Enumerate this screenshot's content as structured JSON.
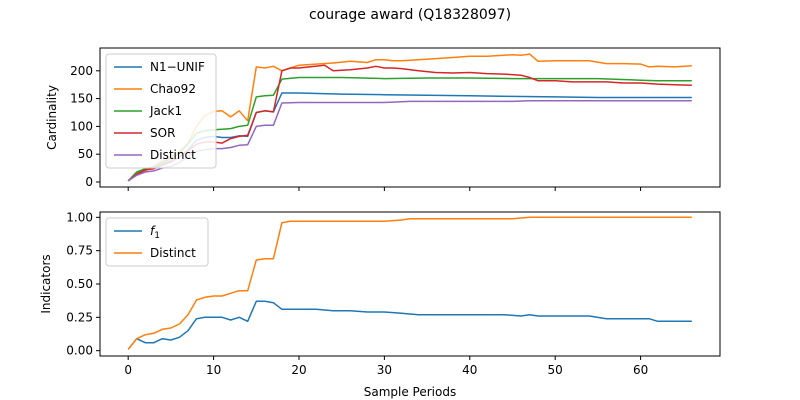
{
  "title": "courage award (Q18328097)",
  "chart_data": [
    {
      "type": "line",
      "ylabel": "Cardinality",
      "xlabel": "",
      "xlim": [
        -3.3,
        69.3
      ],
      "ylim": [
        -9,
        241
      ],
      "xticks": [
        0,
        10,
        20,
        30,
        40,
        50,
        60
      ],
      "yticks": [
        0,
        50,
        100,
        150,
        200
      ],
      "ytick_labels": [
        "0",
        "50",
        "100",
        "150",
        "200"
      ],
      "show_xtick_labels": false,
      "legend_position": "upper-left",
      "series": [
        {
          "name": "N1−UNIF",
          "color": "#1f77b4",
          "x": [
            0,
            1,
            2,
            3,
            4,
            5,
            6,
            7,
            8,
            9,
            10,
            11,
            12,
            13,
            14,
            15,
            16,
            17,
            18,
            20,
            25,
            30,
            35,
            40,
            45,
            50,
            55,
            60,
            66
          ],
          "y": [
            2,
            15,
            22,
            25,
            33,
            38,
            45,
            58,
            75,
            80,
            82,
            80,
            80,
            83,
            82,
            125,
            128,
            126,
            160,
            160,
            158,
            157,
            156,
            155,
            154,
            153,
            152,
            152,
            152
          ]
        },
        {
          "name": "Chao92",
          "color": "#ff7f0e",
          "x": [
            0,
            1,
            2,
            3,
            4,
            5,
            6,
            7,
            8,
            9,
            10,
            11,
            12,
            13,
            14,
            15,
            16,
            17,
            18,
            19,
            20,
            22,
            24,
            26,
            28,
            29,
            30,
            31,
            32,
            34,
            36,
            38,
            40,
            42,
            44,
            45,
            46,
            47,
            48,
            50,
            52,
            54,
            56,
            58,
            60,
            61,
            62,
            64,
            66
          ],
          "y": [
            2,
            15,
            20,
            28,
            38,
            45,
            55,
            70,
            100,
            120,
            127,
            128,
            117,
            128,
            110,
            207,
            205,
            208,
            200,
            205,
            210,
            212,
            214,
            217,
            215,
            220,
            220,
            218,
            218,
            220,
            222,
            224,
            226,
            226,
            228,
            229,
            228,
            230,
            217,
            218,
            218,
            218,
            213,
            213,
            212,
            207,
            208,
            207,
            209
          ]
        },
        {
          "name": "Jack1",
          "color": "#2ca02c",
          "x": [
            0,
            1,
            2,
            3,
            4,
            5,
            6,
            7,
            8,
            9,
            10,
            11,
            12,
            13,
            14,
            15,
            16,
            17,
            18,
            20,
            25,
            30,
            35,
            40,
            45,
            50,
            55,
            60,
            62,
            66
          ],
          "y": [
            2,
            18,
            24,
            28,
            35,
            42,
            52,
            68,
            88,
            92,
            94,
            95,
            96,
            100,
            102,
            153,
            155,
            156,
            185,
            188,
            188,
            186,
            187,
            187,
            186,
            186,
            186,
            183,
            182,
            182
          ]
        },
        {
          "name": "SOR",
          "color": "#d62728",
          "x": [
            0,
            1,
            2,
            3,
            4,
            5,
            6,
            7,
            8,
            9,
            10,
            11,
            12,
            13,
            14,
            15,
            16,
            17,
            18,
            19,
            20,
            23,
            24,
            26,
            28,
            29,
            30,
            31,
            32,
            34,
            36,
            38,
            40,
            42,
            44,
            46,
            47,
            48,
            50,
            52,
            54,
            56,
            58,
            60,
            62,
            64,
            66
          ],
          "y": [
            2,
            14,
            22,
            24,
            30,
            36,
            45,
            56,
            68,
            72,
            72,
            70,
            78,
            82,
            84,
            125,
            128,
            126,
            200,
            205,
            205,
            210,
            200,
            202,
            205,
            208,
            205,
            205,
            204,
            200,
            197,
            196,
            197,
            195,
            194,
            192,
            188,
            182,
            182,
            180,
            180,
            180,
            178,
            178,
            176,
            175,
            174
          ]
        },
        {
          "name": "Distinct",
          "color": "#9467bd",
          "x": [
            0,
            1,
            2,
            3,
            4,
            5,
            6,
            7,
            8,
            9,
            10,
            11,
            12,
            13,
            14,
            15,
            16,
            17,
            18,
            20,
            25,
            30,
            33,
            35,
            40,
            45,
            47,
            50,
            55,
            60,
            66
          ],
          "y": [
            2,
            12,
            18,
            20,
            25,
            28,
            35,
            45,
            55,
            58,
            60,
            60,
            62,
            66,
            67,
            100,
            102,
            102,
            142,
            143,
            143,
            143,
            145,
            145,
            145,
            145,
            146,
            146,
            146,
            146,
            146
          ]
        }
      ]
    },
    {
      "type": "line",
      "ylabel": "Indicators",
      "xlabel": "Sample Periods",
      "xlim": [
        -3.3,
        69.3
      ],
      "ylim": [
        -0.04,
        1.04
      ],
      "xticks": [
        0,
        10,
        20,
        30,
        40,
        50,
        60
      ],
      "yticks": [
        0,
        0.25,
        0.5,
        0.75,
        1.0
      ],
      "ytick_labels": [
        "0.00",
        "0.25",
        "0.50",
        "0.75",
        "1.00"
      ],
      "show_xtick_labels": true,
      "legend_position": "upper-left",
      "series": [
        {
          "name": "f",
          "name_sub": "1",
          "color": "#1f77b4",
          "x": [
            0,
            1,
            2,
            3,
            4,
            5,
            6,
            7,
            8,
            9,
            10,
            11,
            12,
            13,
            14,
            15,
            16,
            17,
            18,
            20,
            22,
            24,
            26,
            28,
            30,
            32,
            34,
            36,
            38,
            40,
            42,
            44,
            46,
            47,
            48,
            50,
            52,
            54,
            56,
            58,
            60,
            61,
            62,
            64,
            66
          ],
          "y": [
            0.01,
            0.09,
            0.06,
            0.06,
            0.09,
            0.08,
            0.1,
            0.15,
            0.24,
            0.25,
            0.25,
            0.25,
            0.23,
            0.25,
            0.22,
            0.37,
            0.37,
            0.36,
            0.31,
            0.31,
            0.31,
            0.3,
            0.3,
            0.29,
            0.29,
            0.28,
            0.27,
            0.27,
            0.27,
            0.27,
            0.27,
            0.27,
            0.26,
            0.27,
            0.26,
            0.26,
            0.26,
            0.26,
            0.24,
            0.24,
            0.24,
            0.24,
            0.22,
            0.22,
            0.22
          ]
        },
        {
          "name": "Distinct",
          "name_sub": "",
          "color": "#ff7f0e",
          "x": [
            0,
            1,
            2,
            3,
            4,
            5,
            6,
            7,
            8,
            9,
            10,
            11,
            12,
            13,
            14,
            15,
            16,
            17,
            18,
            19,
            20,
            25,
            30,
            32,
            33,
            35,
            40,
            45,
            47,
            50,
            55,
            60,
            62,
            66
          ],
          "y": [
            0.01,
            0.09,
            0.12,
            0.13,
            0.16,
            0.17,
            0.2,
            0.27,
            0.38,
            0.4,
            0.41,
            0.41,
            0.43,
            0.45,
            0.45,
            0.68,
            0.69,
            0.69,
            0.96,
            0.97,
            0.97,
            0.97,
            0.97,
            0.98,
            0.99,
            0.99,
            0.99,
            0.99,
            1.0,
            1.0,
            1.0,
            1.0,
            1.0,
            1.0
          ]
        }
      ]
    }
  ]
}
